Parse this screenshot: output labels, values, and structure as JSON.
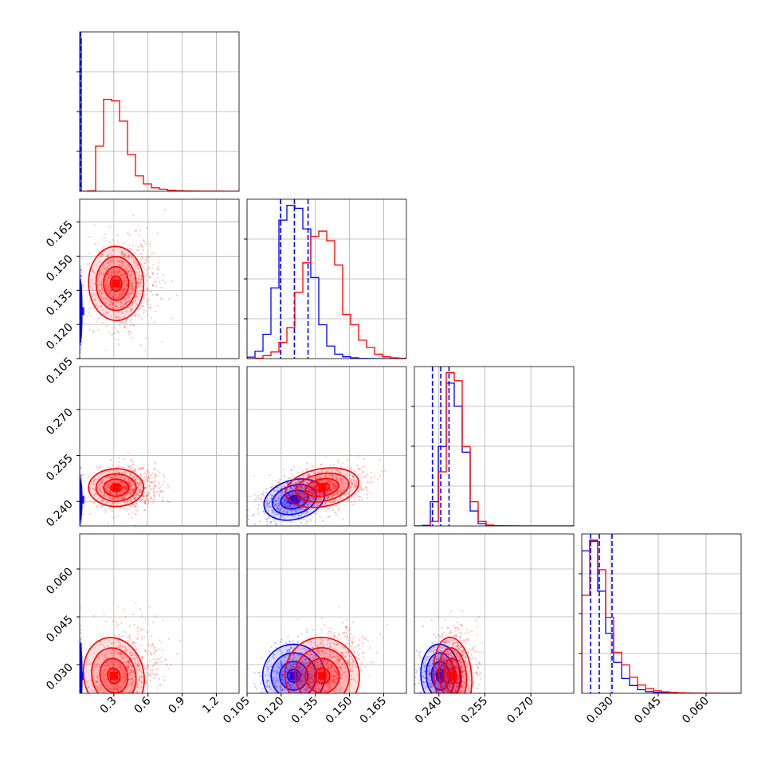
{
  "chart_data": {
    "type": "corner",
    "title": "",
    "grid": true,
    "series": [
      {
        "color": "#0000ff"
      },
      {
        "color": "#ff0000"
      }
    ],
    "parameters": [
      {
        "range": [
          0.0,
          1.4
        ],
        "ticks": [
          0.3,
          0.6,
          0.9,
          1.2
        ],
        "tick_labels": [
          "0.3",
          "0.6",
          "0.9",
          "1.2"
        ]
      },
      {
        "range": [
          0.105,
          0.175
        ],
        "ticks": [
          0.105,
          0.12,
          0.135,
          0.15,
          0.165
        ],
        "tick_labels": [
          "0.105",
          "0.120",
          "0.135",
          "0.150",
          "0.165"
        ]
      },
      {
        "range": [
          0.232,
          0.284
        ],
        "ticks": [
          0.24,
          0.255,
          0.27
        ],
        "tick_labels": [
          "0.240",
          "0.255",
          "0.270"
        ]
      },
      {
        "range": [
          0.021,
          0.071
        ],
        "ticks": [
          0.03,
          0.045,
          0.06
        ],
        "tick_labels": [
          "0.030",
          "0.045",
          "0.060"
        ]
      }
    ],
    "marginals": [
      {
        "param": 0,
        "blue": {
          "bins": [
            0.0,
            0.014
          ],
          "counts": [
            4000
          ],
          "quantiles": [
            0.003,
            0.006,
            0.009
          ]
        },
        "red": {
          "bins": [
            0.0,
            0.07,
            0.14,
            0.21,
            0.28,
            0.35,
            0.42,
            0.49,
            0.56,
            0.63,
            0.7,
            0.77,
            0.84,
            0.91,
            0.98,
            1.05,
            1.12,
            1.19,
            1.26,
            1.33,
            1.4
          ],
          "counts": [
            0,
            10,
            1180,
            2400,
            2360,
            1830,
            960,
            400,
            190,
            90,
            55,
            25,
            15,
            8,
            5,
            3,
            2,
            1,
            0,
            0
          ]
        }
      },
      {
        "param": 1,
        "blue": {
          "bins": [
            0.105,
            0.1085,
            0.112,
            0.1155,
            0.119,
            0.1225,
            0.126,
            0.1295,
            0.133,
            0.1365,
            0.14,
            0.1435,
            0.147,
            0.1505,
            0.154,
            0.1575,
            0.161,
            0.1645,
            0.168,
            0.1715,
            0.175
          ],
          "counts": [
            20,
            100,
            330,
            960,
            1880,
            2080,
            2040,
            1760,
            1100,
            460,
            170,
            60,
            25,
            10,
            3,
            1,
            0,
            0,
            0,
            0
          ],
          "quantiles": [
            0.1197,
            0.1258,
            0.1318
          ]
        },
        "red": {
          "bins": [
            0.105,
            0.1085,
            0.112,
            0.1155,
            0.119,
            0.1225,
            0.126,
            0.1295,
            0.133,
            0.1365,
            0.14,
            0.1435,
            0.147,
            0.1505,
            0.154,
            0.1575,
            0.161,
            0.1645,
            0.168,
            0.1715,
            0.175
          ],
          "counts": [
            0,
            5,
            40,
            90,
            220,
            420,
            900,
            1300,
            1660,
            1730,
            1600,
            1270,
            600,
            460,
            250,
            150,
            60,
            25,
            10,
            5
          ]
        }
      },
      {
        "param": 2,
        "blue": {
          "bins": [
            0.232,
            0.2346,
            0.2372,
            0.2398,
            0.2424,
            0.245,
            0.2476,
            0.2502,
            0.2528,
            0.2554,
            0.258,
            0.2606,
            0.2632,
            0.2658,
            0.2684,
            0.271,
            0.2736,
            0.2762,
            0.2788,
            0.2814,
            0.284
          ],
          "counts": [
            0,
            10,
            420,
            1380,
            2480,
            2080,
            1280,
            260,
            40,
            5,
            2,
            1,
            0,
            0,
            0,
            0,
            0,
            0,
            0,
            0
          ],
          "quantiles": [
            0.2379,
            0.2406,
            0.2433
          ]
        },
        "red": {
          "bins": [
            0.232,
            0.2346,
            0.2372,
            0.2398,
            0.2424,
            0.245,
            0.2476,
            0.2502,
            0.2528,
            0.2554,
            0.258,
            0.2606,
            0.2632,
            0.2658,
            0.2684,
            0.271,
            0.2736,
            0.2762,
            0.2788,
            0.2814,
            0.284
          ],
          "counts": [
            0,
            0,
            80,
            940,
            2660,
            2520,
            1380,
            420,
            80,
            15,
            5,
            2,
            1,
            0,
            0,
            0,
            0,
            0,
            0,
            0
          ]
        }
      },
      {
        "param": 3,
        "blue": {
          "bins": [
            0.021,
            0.0235,
            0.026,
            0.0285,
            0.031,
            0.0335,
            0.036,
            0.0385,
            0.041,
            0.0435,
            0.046,
            0.0485,
            0.051,
            0.0535,
            0.056,
            0.0585,
            0.061,
            0.0635,
            0.066,
            0.0685,
            0.071
          ],
          "counts": [
            2400,
            2560,
            1720,
            1010,
            520,
            250,
            130,
            60,
            28,
            14,
            7,
            3,
            1,
            1,
            0,
            0,
            0,
            0,
            0,
            0
          ],
          "quantiles": [
            0.0238,
            0.0265,
            0.0305
          ]
        },
        "red": {
          "bins": [
            0.021,
            0.0235,
            0.026,
            0.0285,
            0.031,
            0.0335,
            0.036,
            0.0385,
            0.041,
            0.0435,
            0.046,
            0.0485,
            0.051,
            0.0535,
            0.056,
            0.0585,
            0.061,
            0.0635,
            0.066,
            0.0685,
            0.071
          ],
          "counts": [
            1650,
            2580,
            2080,
            1280,
            690,
            480,
            270,
            140,
            80,
            42,
            24,
            14,
            8,
            5,
            3,
            2,
            1,
            0,
            0,
            0
          ]
        }
      }
    ],
    "joints": [
      {
        "x": 0,
        "y": 1,
        "blue": {
          "center": [
            0.005,
            0.1258
          ],
          "sd": [
            0.004,
            0.0062
          ],
          "rho": 0.0
        },
        "red": {
          "center": [
            0.32,
            0.138
          ],
          "sd": [
            0.11,
            0.0074
          ],
          "rho": 0.05
        }
      },
      {
        "x": 0,
        "y": 2,
        "blue": {
          "center": [
            0.005,
            0.2406
          ],
          "sd": [
            0.004,
            0.0029
          ],
          "rho": 0.0
        },
        "red": {
          "center": [
            0.32,
            0.2445
          ],
          "sd": [
            0.11,
            0.0028
          ],
          "rho": 0.0
        }
      },
      {
        "x": 1,
        "y": 2,
        "blue": {
          "center": [
            0.1258,
            0.2406
          ],
          "sd": [
            0.0062,
            0.0029
          ],
          "rho": 0.45
        },
        "red": {
          "center": [
            0.138,
            0.2445
          ],
          "sd": [
            0.0074,
            0.0028
          ],
          "rho": 0.3
        }
      },
      {
        "x": 0,
        "y": 3,
        "blue": {
          "center": [
            0.005,
            0.0265
          ],
          "sd": [
            0.004,
            0.0045
          ],
          "rho": 0.0
        },
        "red": {
          "center": [
            0.3,
            0.0265
          ],
          "sd": [
            0.12,
            0.0055
          ],
          "rho": 0.35
        }
      },
      {
        "x": 1,
        "y": 3,
        "blue": {
          "center": [
            0.1255,
            0.0265
          ],
          "sd": [
            0.0062,
            0.0045
          ],
          "rho": 0.2
        },
        "red": {
          "center": [
            0.138,
            0.0265
          ],
          "sd": [
            0.0074,
            0.0055
          ],
          "rho": 0.55
        }
      },
      {
        "x": 2,
        "y": 3,
        "blue": {
          "center": [
            0.2405,
            0.0265
          ],
          "sd": [
            0.0029,
            0.0045
          ],
          "rho": 0.1
        },
        "red": {
          "center": [
            0.2445,
            0.0265
          ],
          "sd": [
            0.0028,
            0.0055
          ],
          "rho": 0.15
        }
      }
    ]
  }
}
